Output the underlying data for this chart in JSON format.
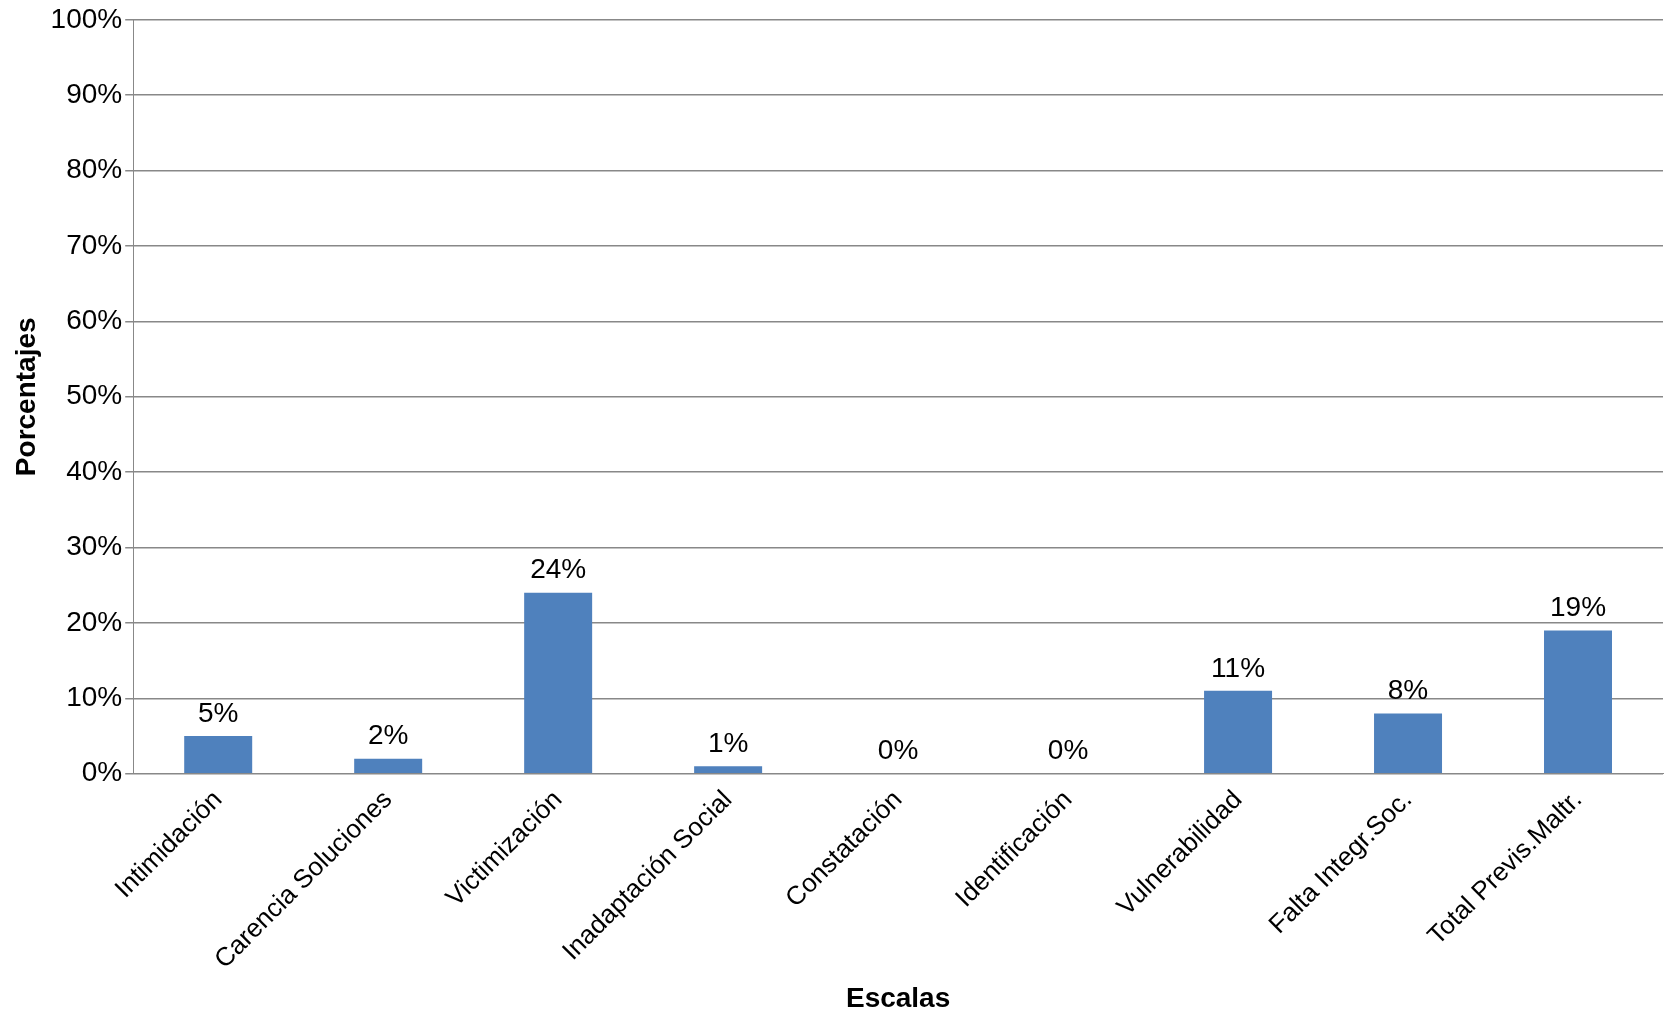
{
  "chart_data": {
    "type": "bar",
    "xlabel": "Escalas",
    "ylabel": "Porcentajes",
    "categories": [
      "Intimidación",
      "Carencia Soluciones",
      "Victimización",
      "Inadaptación Social",
      "Constatación",
      "Identificación",
      "Vulnerabilidad",
      "Falta Integr.Soc.",
      "Total Previs.Maltr."
    ],
    "values": [
      5,
      2,
      24,
      1,
      0,
      0,
      11,
      8,
      19
    ],
    "value_labels": [
      "5%",
      "2%",
      "24%",
      "1%",
      "0%",
      "0%",
      "11%",
      "8%",
      "19%"
    ],
    "color": "#4f81bd",
    "ylim": [
      0,
      100
    ],
    "yticks": [
      {
        "value": 0,
        "label": "0%"
      },
      {
        "value": 10,
        "label": "10%"
      },
      {
        "value": 20,
        "label": "20%"
      },
      {
        "value": 30,
        "label": "30%"
      },
      {
        "value": 40,
        "label": "40%"
      },
      {
        "value": 50,
        "label": "50%"
      },
      {
        "value": 60,
        "label": "60%"
      },
      {
        "value": 70,
        "label": "70%"
      },
      {
        "value": 80,
        "label": "80%"
      },
      {
        "value": 90,
        "label": "90%"
      },
      {
        "value": 100,
        "label": "100%"
      }
    ],
    "grid": "y",
    "legend": false
  }
}
